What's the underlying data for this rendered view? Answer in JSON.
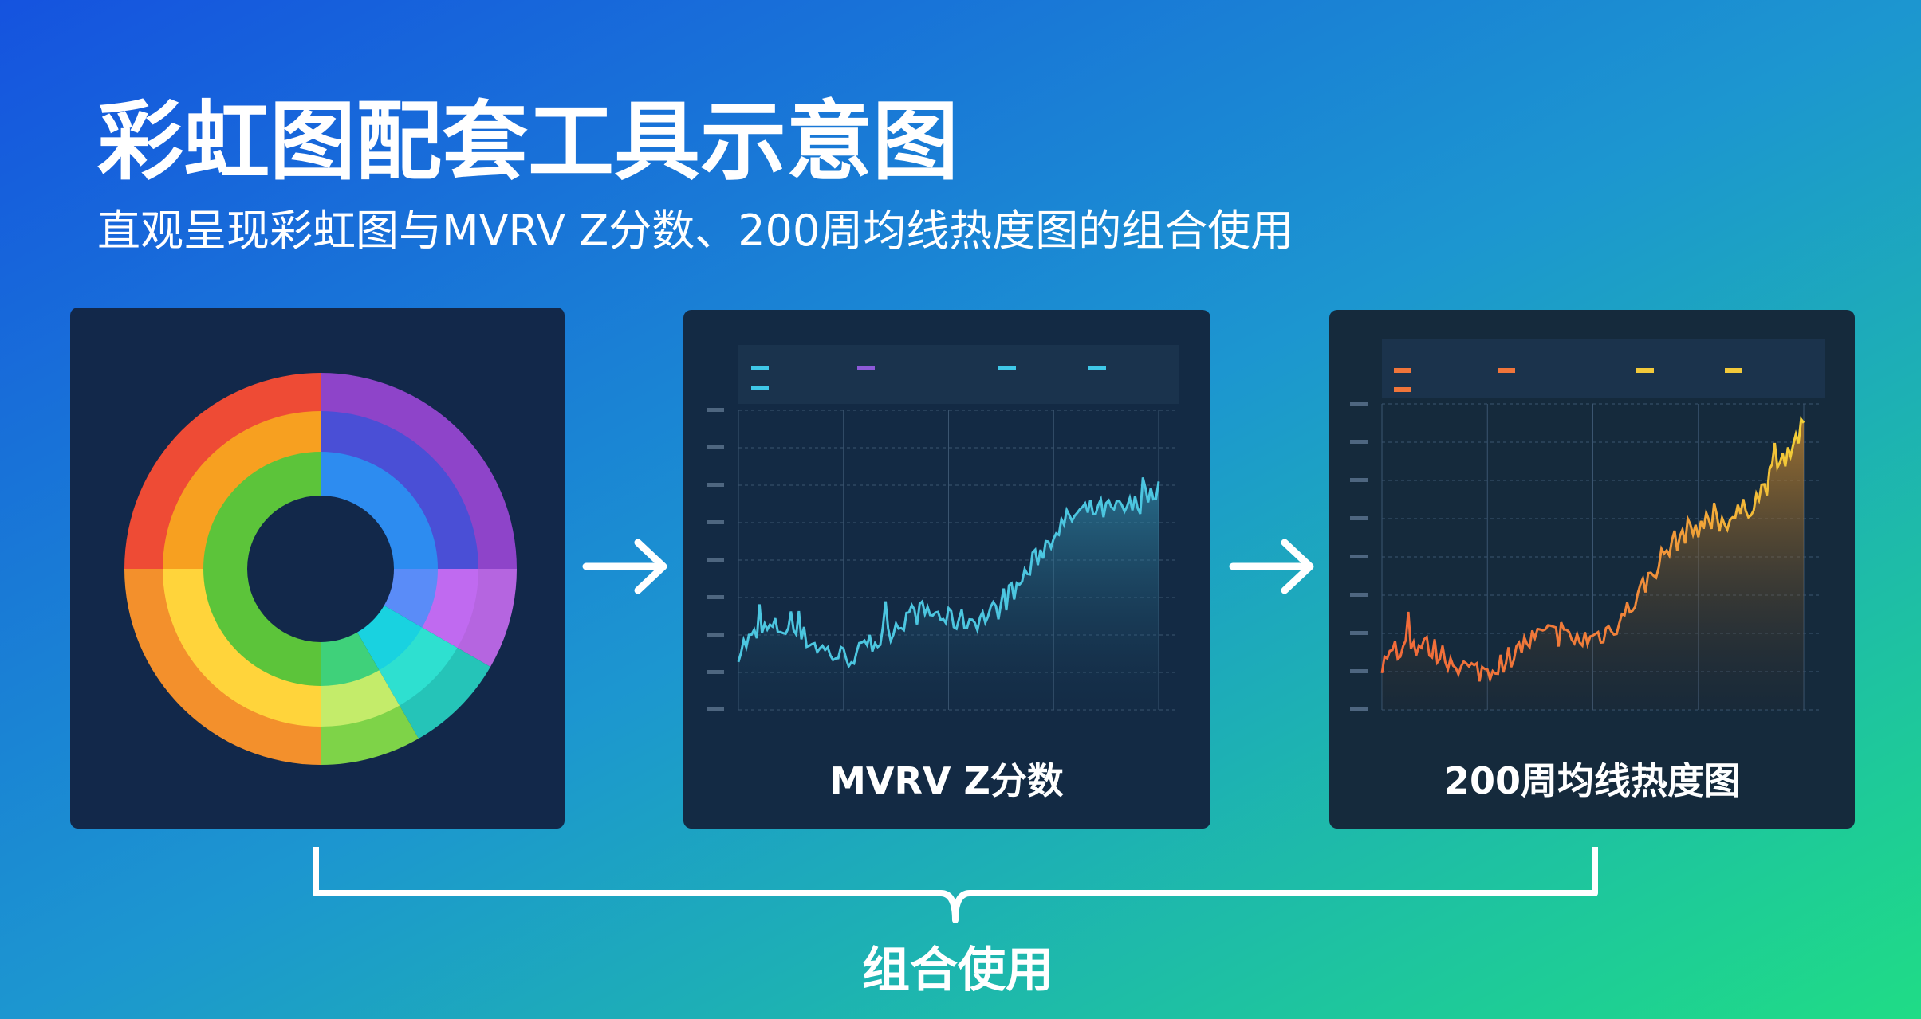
{
  "header": {
    "title": "彩虹图配套工具示意图",
    "subtitle": "直观呈现彩虹图与MVRV Z分数、200周均线热度图的组合使用"
  },
  "panels": [
    {
      "label": "MVRV Z分数"
    },
    {
      "label": "200周均线热度图"
    }
  ],
  "footer": {
    "label": "组合使用"
  }
}
